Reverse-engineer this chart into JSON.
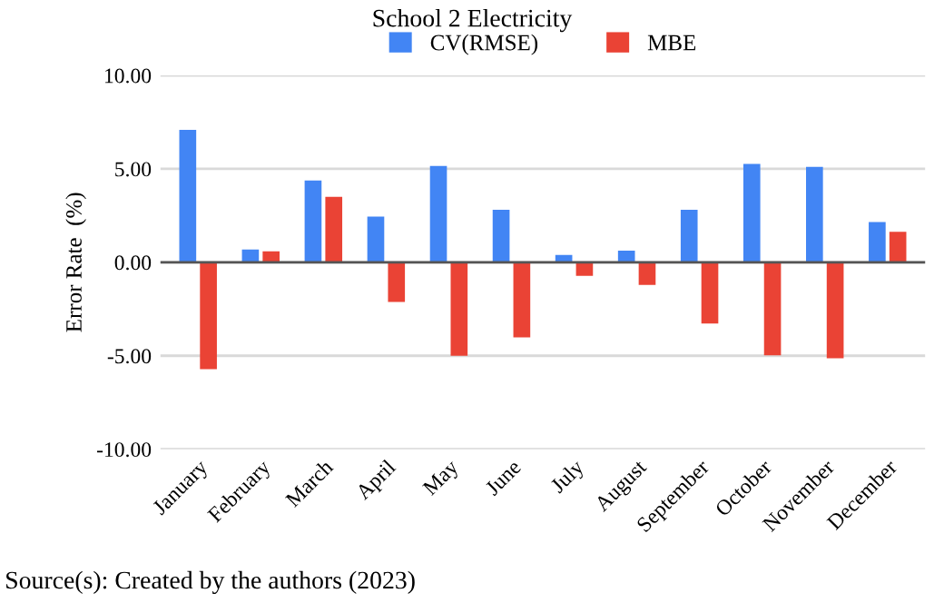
{
  "chart_data": {
    "type": "bar",
    "title": "School 2 Electricity",
    "ylabel": "Error Rate  (%)",
    "categories": [
      "January",
      "February",
      "March",
      "April",
      "May",
      "June",
      "July",
      "August",
      "September",
      "October",
      "November",
      "December"
    ],
    "series": [
      {
        "name": "CV(RMSE)",
        "color": "#4285f4",
        "values": [
          7.09,
          0.69,
          4.38,
          2.45,
          5.16,
          2.81,
          0.39,
          0.62,
          2.81,
          5.26,
          5.1,
          2.16
        ]
      },
      {
        "name": "MBE",
        "color": "#ea4335",
        "values": [
          -5.72,
          0.59,
          3.5,
          -2.12,
          -5.0,
          -4.02,
          -0.72,
          -1.21,
          -3.27,
          -4.97,
          -5.13,
          1.63
        ]
      }
    ],
    "ylim": [
      -10,
      10
    ],
    "yticks": [
      {
        "value": -10,
        "label": "-10.00"
      },
      {
        "value": -5,
        "label": "-5.00"
      },
      {
        "value": 0,
        "label": "0.00"
      },
      {
        "value": 5,
        "label": "5.00"
      },
      {
        "value": 10,
        "label": "10.00"
      }
    ],
    "grid": "y",
    "legend": "top",
    "annotations": [
      "Source(s): Created by the authors (2023)"
    ]
  }
}
